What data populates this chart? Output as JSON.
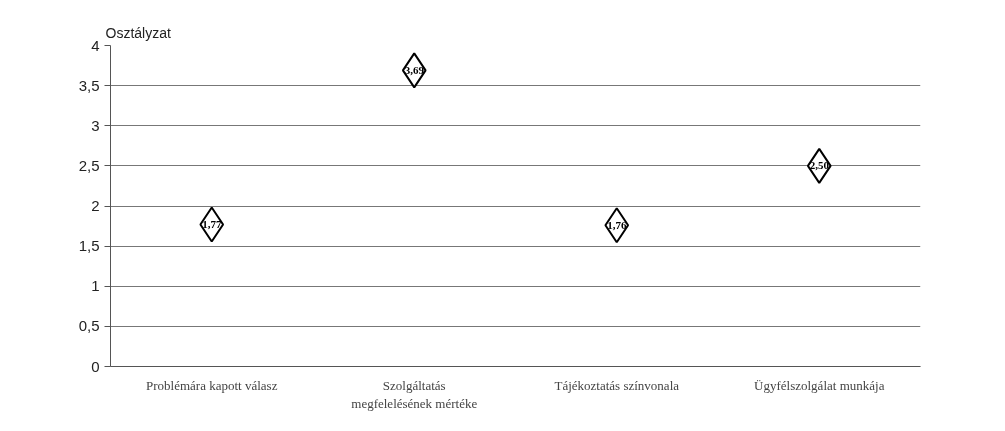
{
  "chart_data": {
    "type": "scatter",
    "ylabel": "Osztályzat",
    "categories": [
      "Problémára kapott válasz",
      "Szolgáltatás megfelelésének mértéke",
      "Tájékoztatás színvonala",
      "Ügyfélszolgálat munkája"
    ],
    "values": [
      1.77,
      3.69,
      1.76,
      2.5
    ],
    "value_labels": [
      "1,77",
      "3,69",
      "1,76",
      "2,50"
    ],
    "color": "#ffffff",
    "marker": "diamond",
    "ylim": [
      0,
      4
    ],
    "yticks": [
      0,
      {
        "value": 0.5,
        "label": "0,5"
      },
      1,
      {
        "value": 1.5,
        "label": "1,5"
      },
      2,
      {
        "value": 2.5,
        "label": "2,5"
      },
      3,
      {
        "value": 3.5,
        "label": "3,5"
      },
      4
    ],
    "grid": "y"
  }
}
